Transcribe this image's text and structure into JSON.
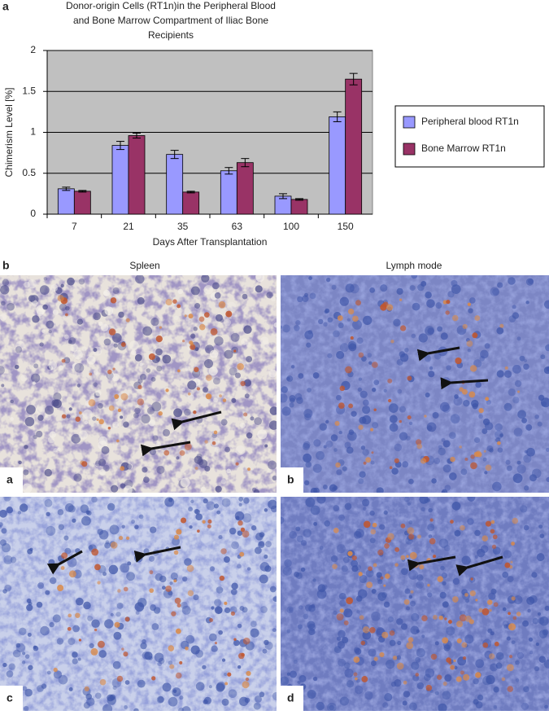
{
  "figure_labels": [
    "a",
    "b"
  ],
  "chart_data": {
    "type": "bar",
    "title": [
      "Donor-origin Cells (RT1n)in the Peripheral Blood",
      "and Bone Marrow Compartment of Iliac Bone",
      "Recipients"
    ],
    "x_label": "Days After Transplantation",
    "y_label": "Chimerism Level [%]",
    "categories": [
      "7",
      "21",
      "35",
      "63",
      "100",
      "150"
    ],
    "series": [
      {
        "name": "Peripheral blood RT1n",
        "color": "#9999ff",
        "values": [
          0.31,
          0.84,
          0.73,
          0.53,
          0.22,
          1.19
        ],
        "errors": [
          0.02,
          0.05,
          0.05,
          0.04,
          0.03,
          0.06
        ]
      },
      {
        "name": "Bone Marrow RT1n",
        "color": "#993366",
        "values": [
          0.28,
          0.96,
          0.27,
          0.63,
          0.18,
          1.65
        ],
        "errors": [
          0.01,
          0.03,
          0.01,
          0.05,
          0.01,
          0.07
        ]
      }
    ],
    "ylim": [
      0,
      2
    ],
    "yticks": [
      0,
      0.5,
      1,
      1.5,
      2
    ],
    "grid": true,
    "legend": "right"
  },
  "micrographs": {
    "columns": [
      "Spleen",
      "Lymph mode"
    ],
    "panels": [
      "a",
      "b",
      "c",
      "d"
    ]
  }
}
